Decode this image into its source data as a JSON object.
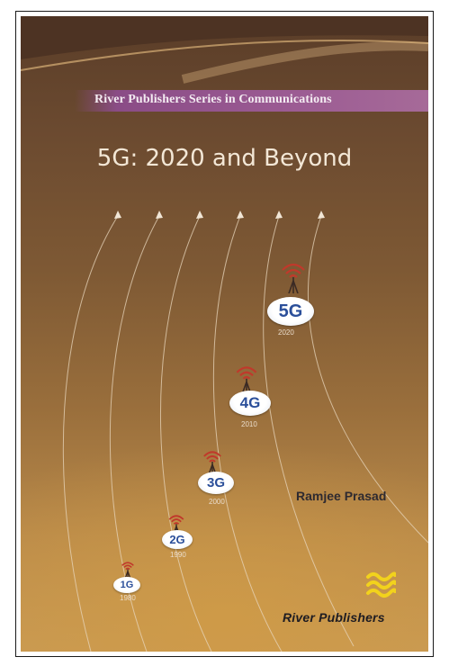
{
  "book": {
    "series": "River Publishers Series in Communications",
    "title": "5G: 2020 and Beyond",
    "author": "Ramjee Prasad",
    "publisher": "River Publishers"
  },
  "generations": [
    {
      "label": "1G",
      "year": "1980"
    },
    {
      "label": "2G",
      "year": "1990"
    },
    {
      "label": "3G",
      "year": "2000"
    },
    {
      "label": "4G",
      "year": "2010"
    },
    {
      "label": "5G",
      "year": "2020"
    }
  ],
  "colors": {
    "background_top": "#5a3d28",
    "background_bottom": "#c89a55",
    "series_band": "#9b5b93",
    "badge_text": "#2b4f9a",
    "logo_yellow": "#f2d21c"
  },
  "icons": {
    "signal": "signal-waves-icon",
    "logo": "river-publishers-logo"
  }
}
